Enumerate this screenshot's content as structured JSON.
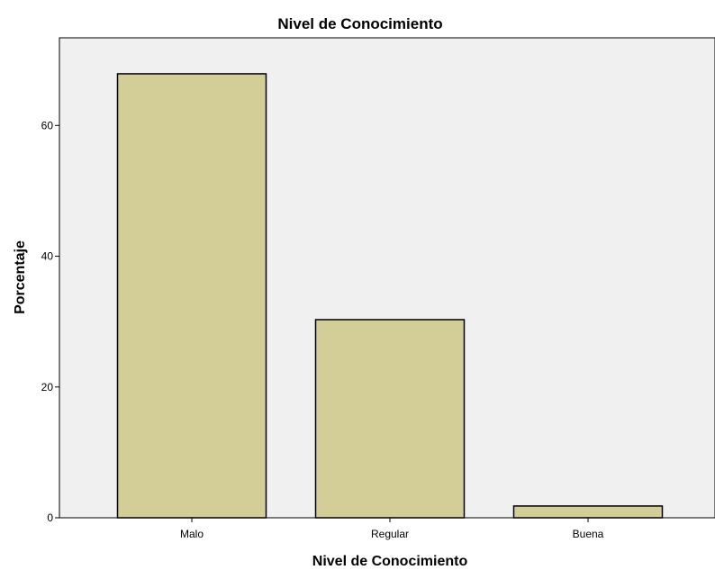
{
  "chart_data": {
    "type": "bar",
    "title": "Nivel de Conocimiento",
    "xlabel": "Nivel de Conocimiento",
    "ylabel": "Porcentaje",
    "categories": [
      "Malo",
      "Regular",
      "Buena"
    ],
    "values": [
      67.9,
      30.3,
      1.8
    ],
    "ylim": [
      0,
      73.4
    ],
    "yticks": [
      0,
      20,
      40,
      60
    ],
    "grid": false,
    "legend": "none",
    "colors": {
      "bar_fill": "#d3ce98",
      "bar_stroke": "#000000",
      "plot_background": "#f0f0f0"
    }
  }
}
